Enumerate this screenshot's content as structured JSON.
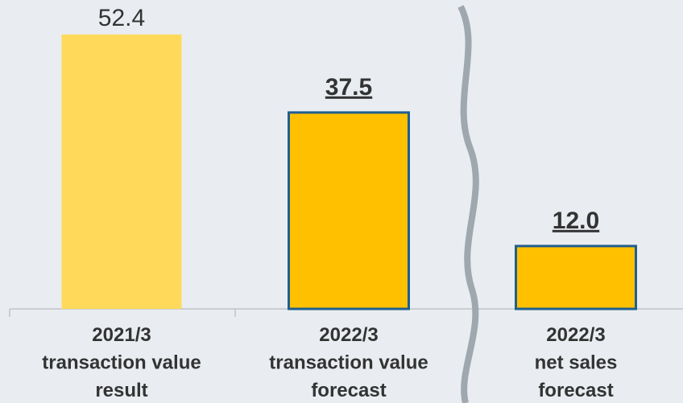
{
  "chart_data": {
    "type": "bar",
    "categories": [
      "2021/3\ntransaction value\nresult",
      "2022/3\ntransaction value\nforecast",
      "2022/3\nnet sales\nforecast"
    ],
    "values": [
      52.4,
      37.5,
      12.0
    ],
    "value_labels": [
      "52.4",
      "37.5",
      "12.0"
    ],
    "colors": [
      "#FFD95A",
      "#FFC000",
      "#FFC000"
    ],
    "edge_colors": [
      null,
      "#1F5F8F",
      "#1F5F8F"
    ],
    "label_emphasis": [
      false,
      true,
      true
    ]
  }
}
